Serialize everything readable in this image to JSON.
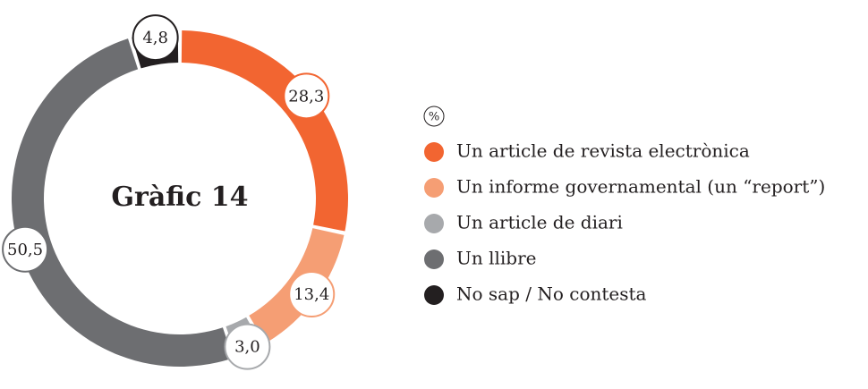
{
  "chart_data": {
    "type": "donut",
    "title": "Gràfic 14",
    "unit": "%",
    "categories": [
      "Un article de revista electrònica",
      "Un informe governamental (un “report”)",
      "Un article de diari",
      "Un llibre",
      "No sap / No contesta"
    ],
    "values": [
      28.3,
      13.4,
      3.0,
      50.5,
      4.8
    ],
    "value_labels": [
      "28,3",
      "13,4",
      "3,0",
      "50,5",
      "4,8"
    ],
    "colors": [
      "#f26531",
      "#f59e74",
      "#a7a9ac",
      "#6d6e71",
      "#231f20"
    ]
  }
}
